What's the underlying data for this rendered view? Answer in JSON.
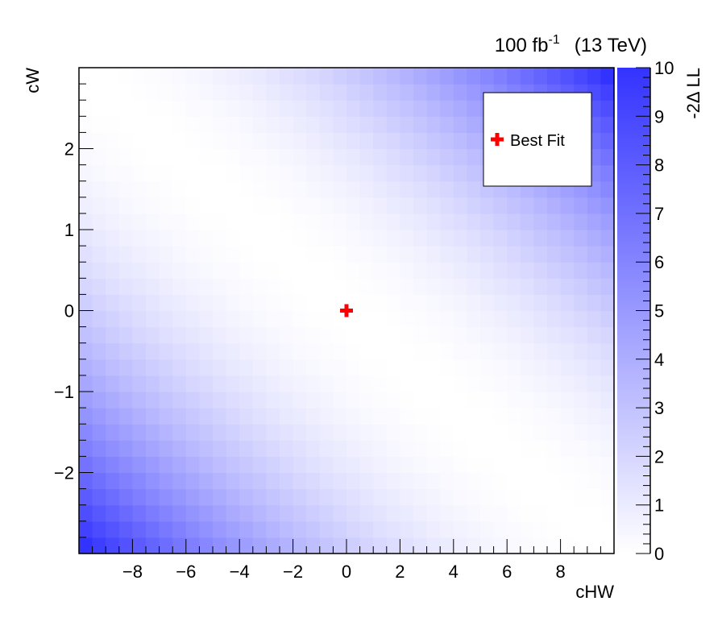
{
  "header": {
    "lumi_value": "100 fb",
    "lumi_exponent": "-1",
    "energy": "(13 TeV)"
  },
  "legend": {
    "best_fit_label": "Best Fit"
  },
  "colors": {
    "best_fit_marker": "#ff0000",
    "scale_max": "#3333ff",
    "scale_min": "#ffffff"
  },
  "chart_data": {
    "type": "heatmap",
    "title": "",
    "xlabel": "cHW",
    "ylabel": "cW",
    "zlabel": "-2Δ LL",
    "xlim": [
      -10,
      10
    ],
    "ylim": [
      -3,
      3
    ],
    "zlim": [
      0,
      10
    ],
    "x_ticks": [
      -8,
      -6,
      -4,
      -2,
      0,
      2,
      4,
      6,
      8
    ],
    "y_ticks": [
      -2,
      -1,
      0,
      1,
      2
    ],
    "z_ticks": [
      0,
      1,
      2,
      3,
      4,
      5,
      6,
      7,
      8,
      9,
      10
    ],
    "grid": false,
    "legend_position": "top-right",
    "bins": {
      "nx": 40,
      "ny": 30
    },
    "surface": {
      "form": "quadratic",
      "description": "-2dLL = a * (cHW + b * cW)^2",
      "a": 0.0265,
      "b": 3.33
    },
    "best_fit": {
      "x": 0,
      "y": 0,
      "label": "Best Fit"
    }
  }
}
